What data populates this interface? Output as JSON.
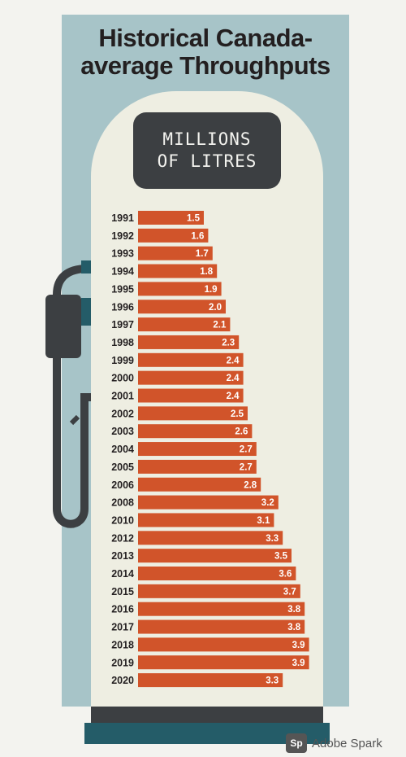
{
  "header": {
    "title_line1": "Historical Canada-",
    "title_line2": "average Throughputs"
  },
  "unit_box": {
    "line1": "MILLIONS",
    "line2": "OF LITRES"
  },
  "watermark": {
    "logo": "Sp",
    "text": "Adobe Spark"
  },
  "colors": {
    "bar": "#d1542a",
    "pump_back": "#a7c4c8",
    "pump_body": "#eeeee2",
    "dark": "#3c3f42",
    "base": "#245c68"
  },
  "chart_data": {
    "type": "bar",
    "orientation": "horizontal",
    "title": "Historical Canada-average Throughputs",
    "unit": "MILLIONS OF LITRES",
    "categories": [
      "1991",
      "1992",
      "1993",
      "1994",
      "1995",
      "1996",
      "1997",
      "1998",
      "1999",
      "2000",
      "2001",
      "2002",
      "2003",
      "2004",
      "2005",
      "2006",
      "2008",
      "2010",
      "2012",
      "2013",
      "2014",
      "2015",
      "2016",
      "2017",
      "2018",
      "2019",
      "2020"
    ],
    "values": [
      1.5,
      1.6,
      1.7,
      1.8,
      1.9,
      2.0,
      2.1,
      2.3,
      2.4,
      2.4,
      2.4,
      2.5,
      2.6,
      2.7,
      2.7,
      2.8,
      3.2,
      3.1,
      3.3,
      3.5,
      3.6,
      3.7,
      3.8,
      3.8,
      3.9,
      3.9,
      3.3
    ],
    "value_labels": [
      "1.5",
      "1.6",
      "1.7",
      "1.8",
      "1.9",
      "2.0",
      "2.1",
      "2.3",
      "2.4",
      "2.4",
      "2.4",
      "2.5",
      "2.6",
      "2.7",
      "2.7",
      "2.8",
      "3.2",
      "3.1",
      "3.3",
      "3.5",
      "3.6",
      "3.7",
      "3.8",
      "3.8",
      "3.9",
      "3.9",
      "3.3"
    ],
    "xlim": [
      0,
      4.0
    ],
    "grid": false,
    "legend": "none"
  }
}
